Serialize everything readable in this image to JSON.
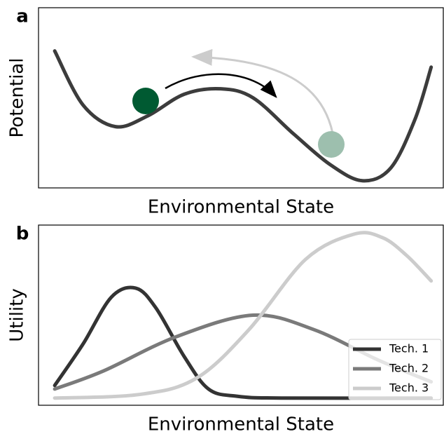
{
  "chart_data": [
    {
      "type": "line",
      "panel_label": "a",
      "xlabel": "Environmental State",
      "ylabel": "Potential",
      "xlim": [
        0,
        100
      ],
      "ylim": [
        0,
        100
      ],
      "color": "#3c3c3c",
      "x": [
        4,
        11,
        19,
        27,
        36,
        45,
        53,
        63,
        72,
        80,
        87,
        93,
        97
      ],
      "values": [
        76,
        46,
        34,
        40,
        52,
        55,
        50,
        30,
        13,
        4,
        11,
        38,
        67
      ]
    },
    {
      "type": "line",
      "panel_label": "b",
      "xlabel": "Environmental State",
      "ylabel": "Utility",
      "xlim": [
        0,
        100
      ],
      "ylim": [
        0,
        100
      ],
      "legend": "lower right",
      "series": [
        {
          "name": "Tech. 1",
          "color": "#333333",
          "x": [
            4,
            11,
            18,
            24,
            29,
            36,
            42,
            49,
            60,
            97
          ],
          "values": [
            11,
            34,
            60,
            65,
            54,
            27,
            9,
            5,
            4,
            4
          ]
        },
        {
          "name": "Tech. 2",
          "color": "#7a7a7a",
          "x": [
            4,
            16,
            34,
            53,
            68,
            84,
            97
          ],
          "values": [
            9,
            19,
            38,
            50,
            42,
            25,
            13
          ]
        },
        {
          "name": "Tech. 3",
          "color": "#cccccc",
          "x": [
            4,
            25,
            39,
            52,
            66,
            78,
            85,
            91,
            97
          ],
          "values": [
            4,
            6,
            15,
            42,
            81,
            95,
            93,
            83,
            69
          ]
        }
      ]
    }
  ]
}
